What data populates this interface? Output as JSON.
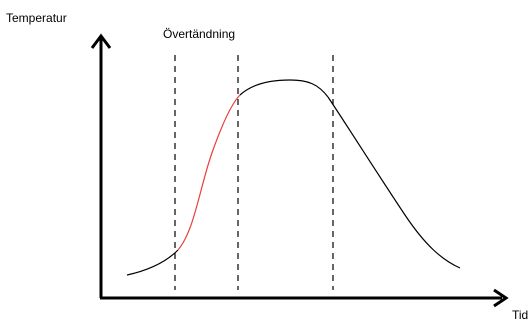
{
  "labels": {
    "y_axis": "Temperatur",
    "x_axis": "Tid",
    "phase": "Övertändning"
  },
  "colors": {
    "background": "#ffffff",
    "axis": "#000000",
    "curve": "#000000",
    "highlight": "#e8403a",
    "divider": "#000000"
  }
}
